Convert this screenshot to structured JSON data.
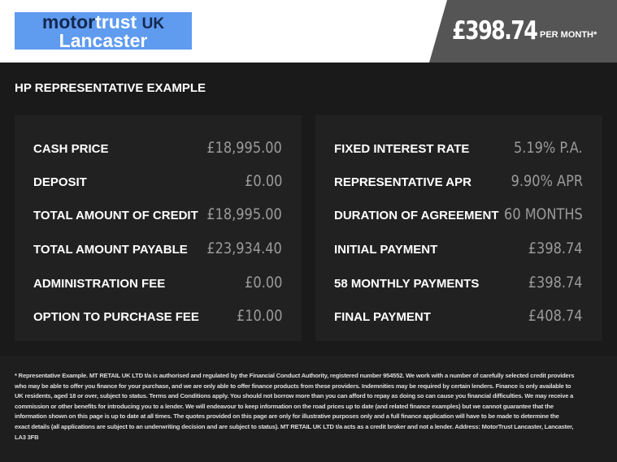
{
  "header": {
    "logo": {
      "motor": "motor",
      "trust": "trust",
      "uk": "UK",
      "location": "Lancaster"
    },
    "price": "£398.74",
    "price_suffix": "PER MONTH*"
  },
  "colors": {
    "logo_bg": "#5f9bef",
    "price_panel": "#555555",
    "background": "#1a1a1a"
  },
  "title": "HP REPRESENTATIVE EXAMPLE",
  "left_panel": [
    {
      "label": "CASH PRICE",
      "value": "£18,995.00"
    },
    {
      "label": "DEPOSIT",
      "value": "£0.00"
    },
    {
      "label": "TOTAL AMOUNT OF CREDIT",
      "value": "£18,995.00"
    },
    {
      "label": "TOTAL AMOUNT PAYABLE",
      "value": "£23,934.40"
    },
    {
      "label": "ADMINISTRATION FEE",
      "value": "£0.00"
    },
    {
      "label": "OPTION TO PURCHASE FEE",
      "value": "£10.00"
    }
  ],
  "right_panel": [
    {
      "label": "FIXED INTEREST RATE",
      "value": "5.19% P.A."
    },
    {
      "label": "REPRESENTATIVE APR",
      "value": "9.90% APR"
    },
    {
      "label": "DURATION OF AGREEMENT",
      "value": "60 MONTHS"
    },
    {
      "label": "INITIAL PAYMENT",
      "value": "£398.74"
    },
    {
      "label": "58 MONTHLY PAYMENTS",
      "value": "£398.74"
    },
    {
      "label": "FINAL PAYMENT",
      "value": "£408.74"
    }
  ],
  "disclaimer": "* Representative Example. MT RETAIL UK LTD t/a is authorised and regulated by the Financial Conduct Authority, registered number 954552. We work with a number of carefully selected credit providers who may be able to offer you finance for your purchase, and we are only able to offer finance products from these providers. Indemnities may be required by certain lenders. Finance is only available to UK residents, aged 18 or over, subject to status. Terms and Conditions apply. You should not borrow more than you can afford to repay as doing so can cause you financial difficulties. We may receive a commission or other benefits for introducing you to a lender. We will endeavour to keep information on the road prices up to date (and related finance examples) but we cannot guarantee that the information shown on this page is up to date at all times. The quotes provided on this page are only for illustrative purposes only and a full finance application will have to be made to determine the exact details (all applications are subject to an underwriting decision and are subject to status). MT RETAIL UK LTD t/a acts as a credit broker and not a lender. Address: MotorTrust Lancaster, Lancaster, LA3 3FB"
}
